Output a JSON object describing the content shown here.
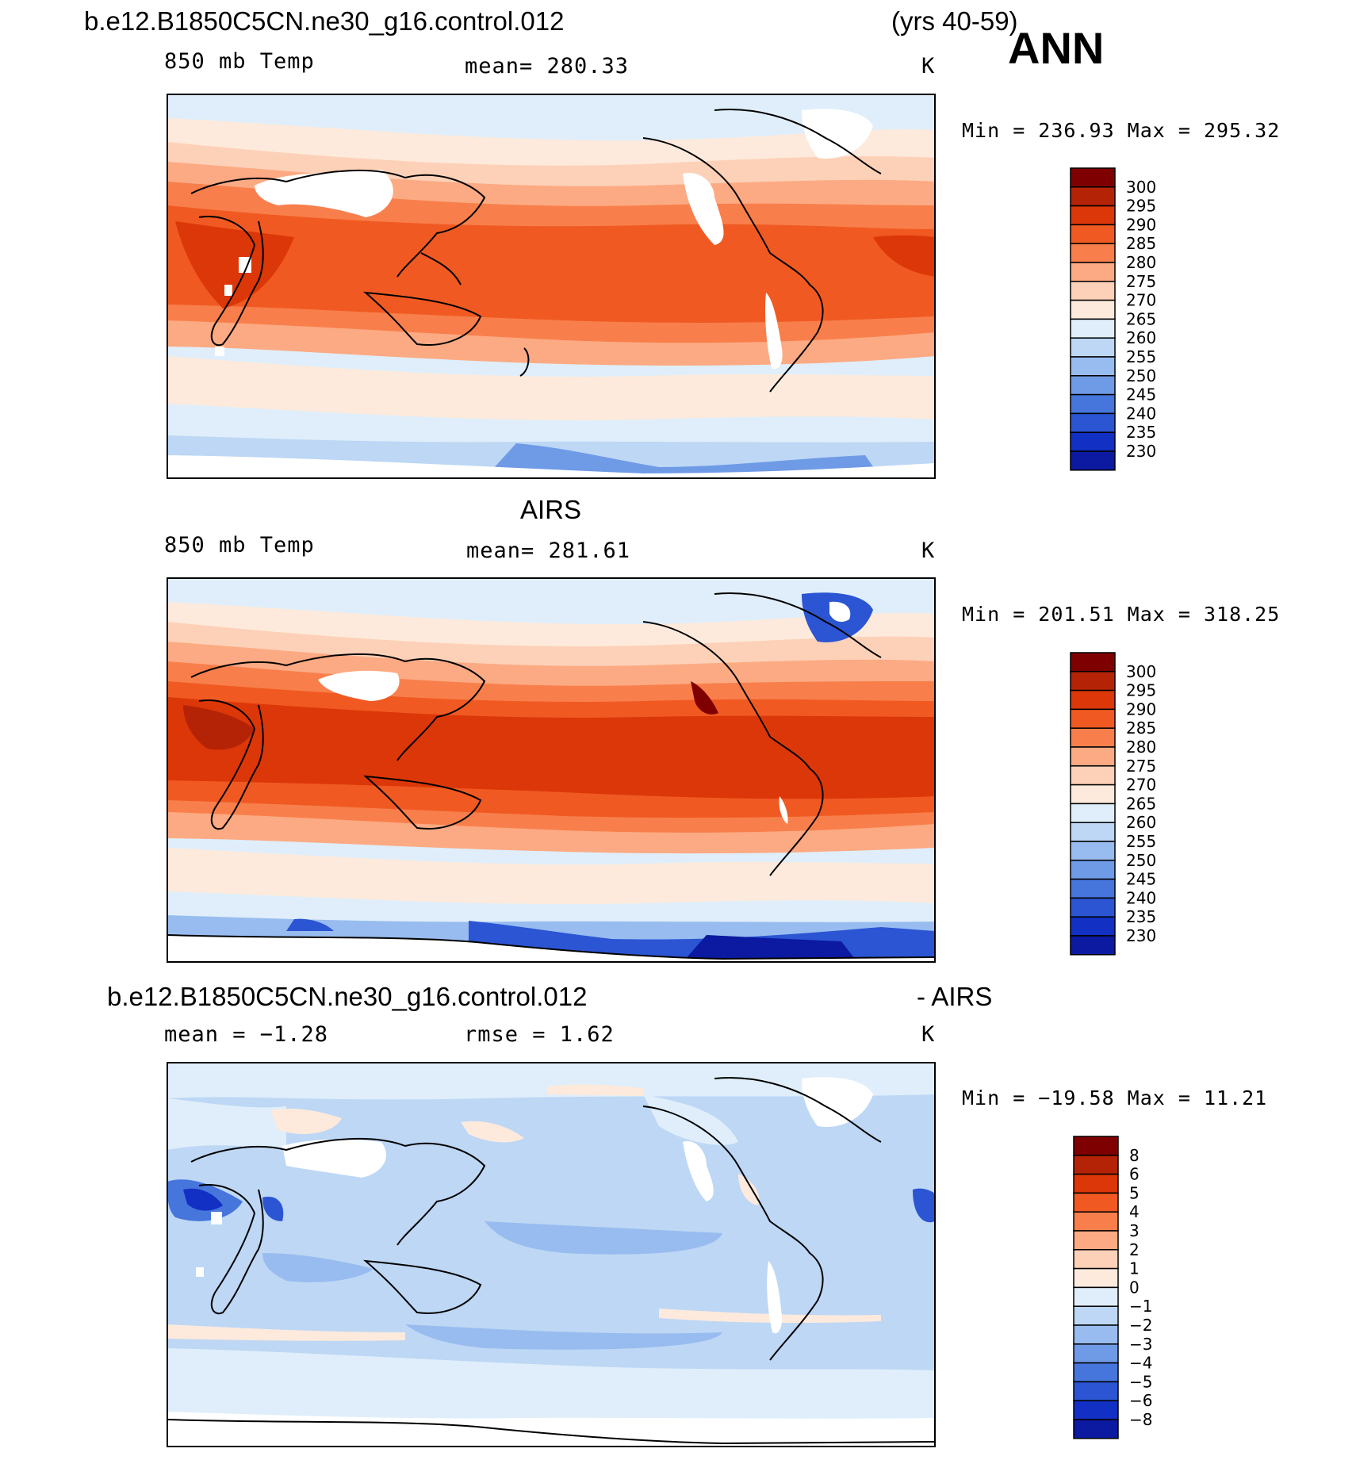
{
  "header": {
    "case_name": "b.e12.B1850C5CN.ne30_g16.control.012",
    "years": "(yrs 40-59)",
    "season": "ANN"
  },
  "panels": [
    {
      "id": "model",
      "title": "",
      "variable": "850 mb Temp",
      "stat": "mean=  280.33",
      "units": "K",
      "minmax": "Min  =  236.93  Max  =  295.32",
      "colorbar_ticks": [
        "300",
        "295",
        "290",
        "285",
        "280",
        "275",
        "270",
        "265",
        "260",
        "255",
        "250",
        "245",
        "240",
        "235",
        "230"
      ]
    },
    {
      "id": "obs",
      "title": "AIRS",
      "variable": "850 mb Temp",
      "stat": "mean=  281.61",
      "units": "K",
      "minmax": "Min  =  201.51  Max  =  318.25",
      "colorbar_ticks": [
        "300",
        "295",
        "290",
        "285",
        "280",
        "275",
        "270",
        "265",
        "260",
        "255",
        "250",
        "245",
        "240",
        "235",
        "230"
      ]
    },
    {
      "id": "diff",
      "title": "b.e12.B1850C5CN.ne30_g16.control.012",
      "title_right": "- AIRS",
      "variable": "mean  =   −1.28",
      "stat": "rmse  =    1.62",
      "units": "K",
      "minmax": "Min  =  −19.58  Max  =   11.21",
      "colorbar_ticks": [
        "8",
        "6",
        "5",
        "4",
        "3",
        "2",
        "1",
        "0",
        "−1",
        "−2",
        "−3",
        "−4",
        "−5",
        "−6",
        "−8"
      ]
    }
  ],
  "colors": {
    "temp_scale": [
      "#7f0000",
      "#b52306",
      "#dc3708",
      "#f05a22",
      "#f87f4c",
      "#fcaa83",
      "#fdd1b8",
      "#fdeadc",
      "#dfeefa",
      "#bdd7f5",
      "#98bcef",
      "#6f9ae6",
      "#4676dc",
      "#2b55d3",
      "#1230c3",
      "#0b1aa0"
    ],
    "diff_scale": [
      "#7f0000",
      "#b52306",
      "#dc3708",
      "#f05a22",
      "#f87f4c",
      "#fcaa83",
      "#fdd1b8",
      "#fdeadc",
      "#dfeefa",
      "#bdd7f5",
      "#98bcef",
      "#6f9ae6",
      "#4676dc",
      "#2b55d3",
      "#1230c3",
      "#0b1aa0"
    ]
  }
}
